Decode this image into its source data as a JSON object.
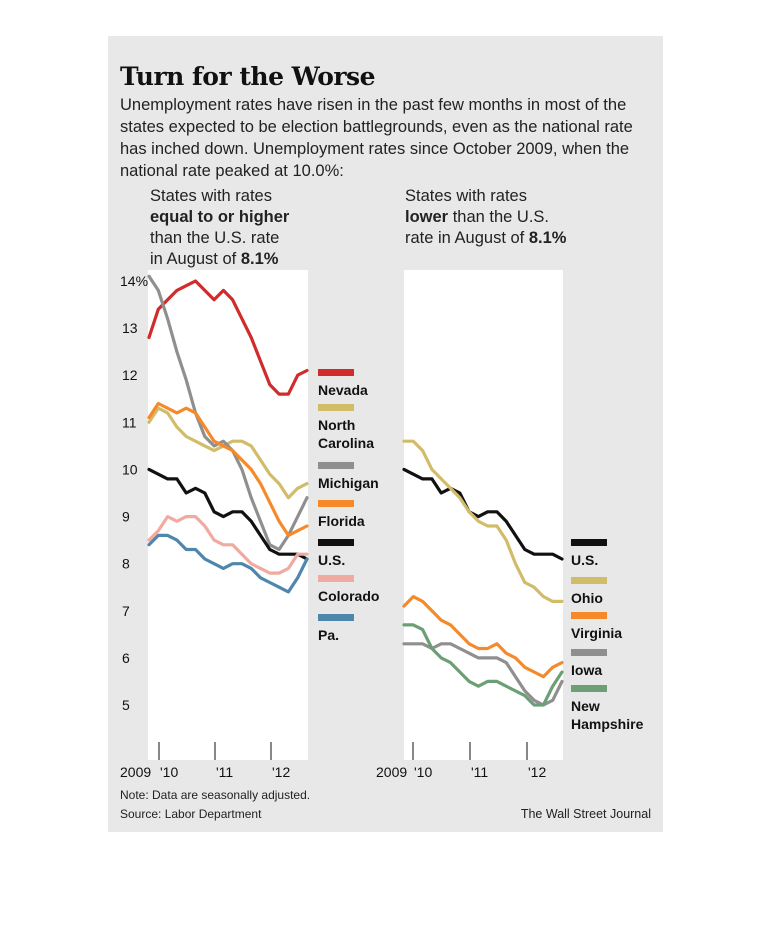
{
  "title": "Turn for the Worse",
  "intro": "Unemployment rates have risen in the past few months in most of the states expected to be election battlegrounds, even as the national rate has inched down. Unemployment rates since October 2009, when the national rate peaked at 10.0%:",
  "note": "Note: Data are seasonally adjusted.",
  "source": "Source: Labor Department",
  "credit": "The Wall Street Journal",
  "left_title": {
    "l1": "States with rates",
    "l2": "equal to or higher",
    "l3": "than the U.S. rate",
    "l4a": "in August of ",
    "l4b": "8.1%"
  },
  "right_title": {
    "l1": "States with rates",
    "l2a": "lower",
    "l2b": " than the U.S.",
    "l3a": "rate in August of ",
    "l3b": "8.1%"
  },
  "chart_data": [
    {
      "type": "line",
      "title": "States with rates equal to or higher than the U.S. rate in August of 8.1%",
      "x": [
        "2009-10",
        "2009-12",
        "2010-02",
        "2010-04",
        "2010-06",
        "2010-08",
        "2010-10",
        "2010-12",
        "2011-02",
        "2011-04",
        "2011-06",
        "2011-08",
        "2011-10",
        "2011-12",
        "2012-02",
        "2012-04",
        "2012-06",
        "2012-08"
      ],
      "x_ticks": [
        "2009",
        "'10",
        "'11",
        "'12"
      ],
      "y_ticks": [
        "14%",
        "13",
        "12",
        "11",
        "10",
        "9",
        "8",
        "7",
        "6",
        "5"
      ],
      "ylim": [
        4,
        14
      ],
      "series": [
        {
          "name": "Nevada",
          "color": "#d12b2b",
          "values": [
            12.8,
            13.4,
            13.6,
            13.8,
            13.9,
            14.0,
            13.8,
            13.6,
            13.8,
            13.6,
            13.2,
            12.8,
            12.3,
            11.8,
            11.6,
            11.6,
            12.0,
            12.1
          ]
        },
        {
          "name": "North Carolina",
          "color": "#d1bc6a",
          "values": [
            11.0,
            11.3,
            11.2,
            10.9,
            10.7,
            10.6,
            10.5,
            10.4,
            10.5,
            10.6,
            10.6,
            10.5,
            10.2,
            9.9,
            9.7,
            9.4,
            9.6,
            9.7
          ]
        },
        {
          "name": "Michigan",
          "color": "#8f8f8f",
          "values": [
            14.1,
            13.8,
            13.2,
            12.5,
            11.9,
            11.2,
            10.7,
            10.5,
            10.6,
            10.4,
            10.0,
            9.4,
            8.9,
            8.4,
            8.3,
            8.6,
            9.0,
            9.4
          ]
        },
        {
          "name": "Florida",
          "color": "#f58a2a",
          "values": [
            11.1,
            11.4,
            11.3,
            11.2,
            11.3,
            11.2,
            10.9,
            10.6,
            10.5,
            10.4,
            10.2,
            10.0,
            9.7,
            9.3,
            8.9,
            8.6,
            8.7,
            8.8
          ]
        },
        {
          "name": "U.S.",
          "color": "#111111",
          "values": [
            10.0,
            9.9,
            9.8,
            9.8,
            9.5,
            9.6,
            9.5,
            9.1,
            9.0,
            9.1,
            9.1,
            8.9,
            8.6,
            8.3,
            8.2,
            8.2,
            8.2,
            8.1
          ]
        },
        {
          "name": "Colorado",
          "color": "#f0aaa2",
          "values": [
            8.5,
            8.7,
            9.0,
            8.9,
            9.0,
            9.0,
            8.8,
            8.5,
            8.4,
            8.4,
            8.2,
            8.0,
            7.9,
            7.8,
            7.8,
            7.9,
            8.2,
            8.2
          ]
        },
        {
          "name": "Pa.",
          "color": "#4f86ac",
          "values": [
            8.4,
            8.6,
            8.6,
            8.5,
            8.3,
            8.3,
            8.1,
            8.0,
            7.9,
            8.0,
            8.0,
            7.9,
            7.7,
            7.6,
            7.5,
            7.4,
            7.7,
            8.1
          ]
        }
      ]
    },
    {
      "type": "line",
      "title": "States with rates lower than the U.S. rate in August of 8.1%",
      "x": [
        "2009-10",
        "2009-12",
        "2010-02",
        "2010-04",
        "2010-06",
        "2010-08",
        "2010-10",
        "2010-12",
        "2011-02",
        "2011-04",
        "2011-06",
        "2011-08",
        "2011-10",
        "2011-12",
        "2012-02",
        "2012-04",
        "2012-06",
        "2012-08"
      ],
      "x_ticks": [
        "2009",
        "'10",
        "'11",
        "'12"
      ],
      "ylim": [
        4,
        14
      ],
      "series": [
        {
          "name": "U.S.",
          "color": "#111111",
          "values": [
            10.0,
            9.9,
            9.8,
            9.8,
            9.5,
            9.6,
            9.5,
            9.1,
            9.0,
            9.1,
            9.1,
            8.9,
            8.6,
            8.3,
            8.2,
            8.2,
            8.2,
            8.1
          ]
        },
        {
          "name": "Ohio",
          "color": "#d1bc6a",
          "values": [
            10.6,
            10.6,
            10.4,
            10.0,
            9.8,
            9.6,
            9.4,
            9.1,
            8.9,
            8.8,
            8.8,
            8.5,
            8.0,
            7.6,
            7.5,
            7.3,
            7.2,
            7.2
          ]
        },
        {
          "name": "Virginia",
          "color": "#f58a2a",
          "values": [
            7.1,
            7.3,
            7.2,
            7.0,
            6.8,
            6.7,
            6.5,
            6.3,
            6.2,
            6.2,
            6.3,
            6.1,
            6.0,
            5.8,
            5.7,
            5.6,
            5.8,
            5.9
          ]
        },
        {
          "name": "Iowa",
          "color": "#8f8f8f",
          "values": [
            6.3,
            6.3,
            6.3,
            6.2,
            6.3,
            6.3,
            6.2,
            6.1,
            6.0,
            6.0,
            6.0,
            5.9,
            5.6,
            5.3,
            5.1,
            5.0,
            5.1,
            5.5
          ]
        },
        {
          "name": "New Hampshire",
          "color": "#6c9f75",
          "values": [
            6.7,
            6.7,
            6.6,
            6.2,
            6.0,
            5.9,
            5.7,
            5.5,
            5.4,
            5.5,
            5.5,
            5.4,
            5.3,
            5.2,
            5.0,
            5.0,
            5.4,
            5.7
          ]
        }
      ]
    }
  ]
}
